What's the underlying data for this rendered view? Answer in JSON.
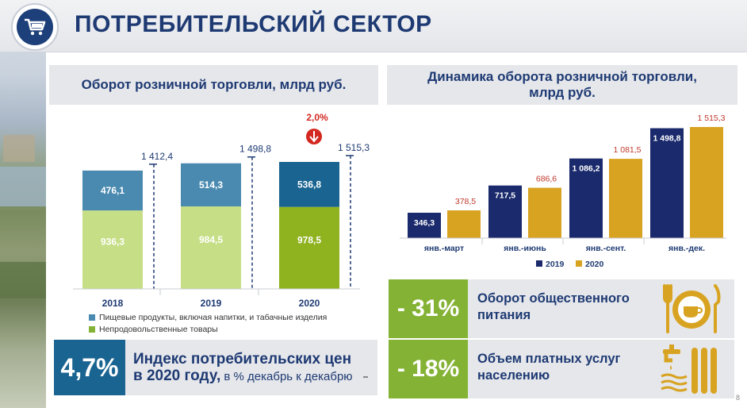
{
  "header": {
    "title": "ПОТРЕБИТЕЛЬСКИЙ СЕКТОР",
    "logo_icon": "shopping-cart-icon"
  },
  "left_panel": {
    "title": "Оборот розничной торговли, млрд руб.",
    "legend": {
      "food": "Пищевые продукты, включая напитки, и табачные изделия",
      "nonfood": "Непродовольственные товары"
    },
    "badge": "2,0%",
    "badge_icon": "arrow-down-icon"
  },
  "cpi": {
    "value": "4,7%",
    "line1": "Индекс потребительских цен",
    "line2_bold": "в 2020 году,",
    "line2_rest": " в % декабрь к декабрю"
  },
  "right_panel": {
    "title": "Динамика оборота розничной торговли, млрд руб."
  },
  "stats": [
    {
      "value": "- 31%",
      "line1": "Оборот общественного",
      "line2": "питания",
      "icon": "restaurant-plate-icon"
    },
    {
      "value": "- 18%",
      "line1": "Объем платных услуг",
      "line2": "населению",
      "icon": "utilities-tap-icon"
    }
  ],
  "page_number": "8",
  "colors": {
    "navy": "#1e3a73",
    "teal": "#4a8ab0",
    "green": "#84b234",
    "green_dark": "#8fb21f",
    "gold": "#d8a321",
    "red": "#d3281f"
  },
  "chart_data": [
    {
      "type": "bar",
      "stacked": true,
      "categories": [
        "2018",
        "2019",
        "2020"
      ],
      "series": [
        {
          "name": "Пищевые продукты, включая напитки, и табачные изделия",
          "values": [
            936.3,
            984.5,
            978.5
          ],
          "labels": [
            "936,3",
            "984,5",
            "978,5"
          ]
        },
        {
          "name": "Непродовольственные товары",
          "values": [
            476.1,
            514.3,
            536.8
          ],
          "labels": [
            "476,1",
            "514,3",
            "536,8"
          ]
        }
      ],
      "totals": [
        1412.4,
        1498.8,
        1515.3
      ],
      "total_labels": [
        "1 412,4",
        "1 498,8",
        "1 515,3"
      ]
    },
    {
      "type": "bar",
      "categories": [
        "янв.-март",
        "янв.-июнь",
        "янв.-сент.",
        "янв.-дек."
      ],
      "series": [
        {
          "name": "2019",
          "values": [
            346.3,
            717.5,
            1086.2,
            1498.8
          ],
          "labels": [
            "346,3",
            "717,5",
            "1 086,2",
            "1 498,8"
          ]
        },
        {
          "name": "2020",
          "values": [
            378.5,
            686.6,
            1081.5,
            1515.3
          ],
          "labels": [
            "378,5",
            "686,6",
            "1 081,5",
            "1 515,3"
          ]
        }
      ]
    }
  ]
}
